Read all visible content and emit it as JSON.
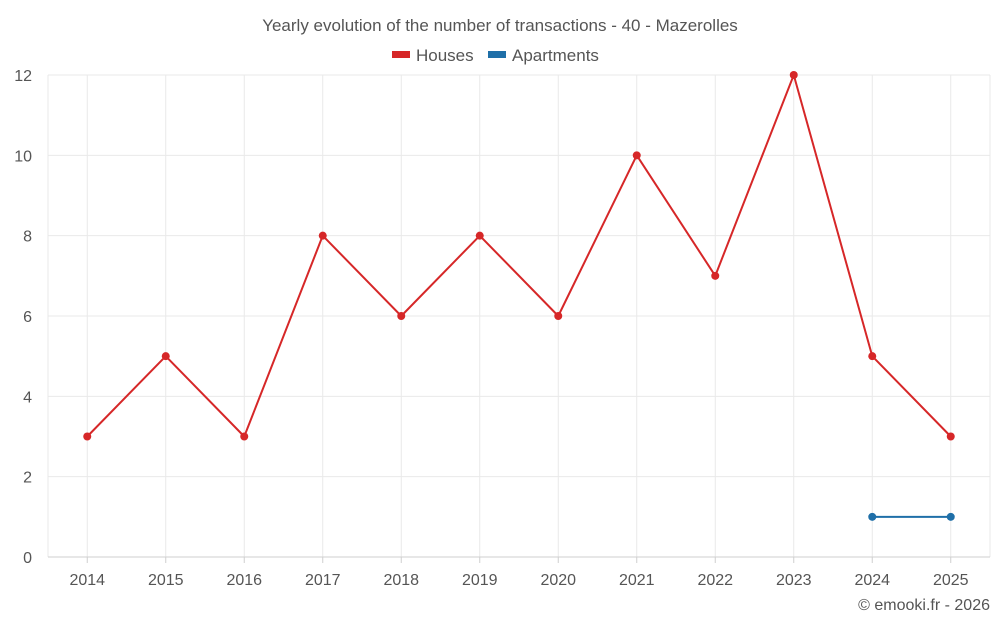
{
  "chart_data": {
    "type": "line",
    "title": "Yearly evolution of the number of transactions - 40 - Mazerolles",
    "categories": [
      "2014",
      "2015",
      "2016",
      "2017",
      "2018",
      "2019",
      "2020",
      "2021",
      "2022",
      "2023",
      "2024",
      "2025"
    ],
    "series": [
      {
        "name": "Houses",
        "color": "#d62728",
        "values": [
          3,
          5,
          3,
          8,
          6,
          8,
          6,
          10,
          7,
          12,
          5,
          3
        ]
      },
      {
        "name": "Apartments",
        "color": "#1f6fa8",
        "values": [
          null,
          null,
          null,
          null,
          null,
          null,
          null,
          null,
          null,
          null,
          1,
          1
        ]
      }
    ],
    "ylim": [
      0,
      12
    ],
    "yticks": [
      0,
      2,
      4,
      6,
      8,
      10,
      12
    ],
    "grid": true,
    "legend_position": "top-center",
    "xlabel": "",
    "ylabel": ""
  },
  "credit": "© emooki.fr - 2026"
}
